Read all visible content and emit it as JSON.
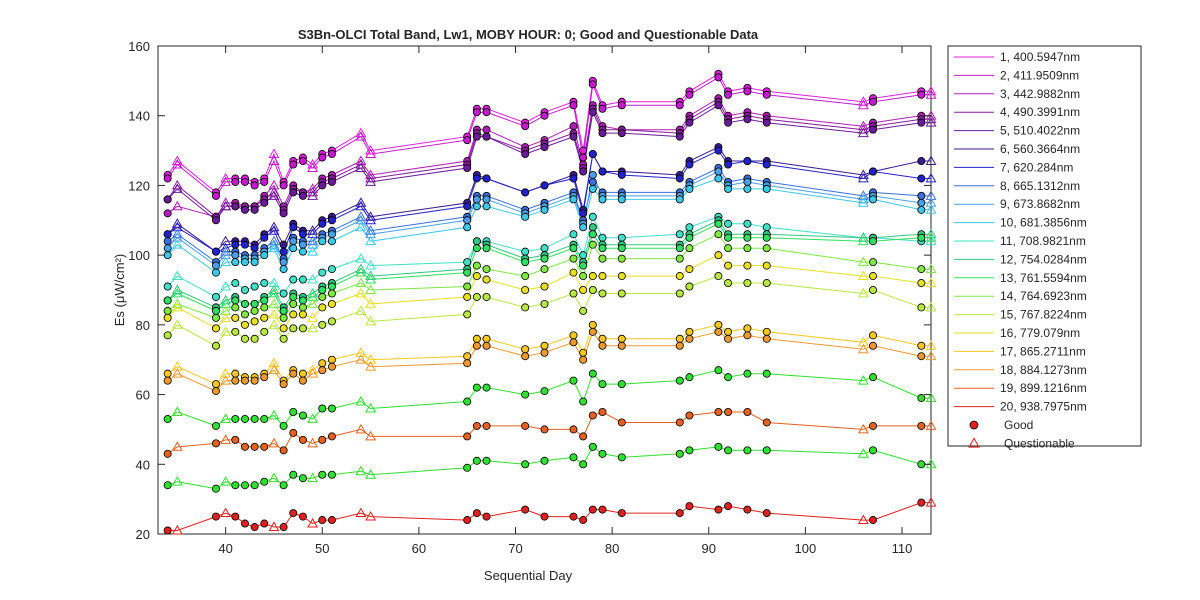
{
  "chart_data": {
    "type": "line",
    "title": "S3Bn-OLCI Total Band,  Lw1, MOBY HOUR: 0;  Good and Questionable Data",
    "xlabel": "Sequential Day",
    "ylabel": "Es (μW/cm²)",
    "xlim": [
      33,
      113
    ],
    "ylim": [
      20,
      160
    ],
    "xticks": [
      40,
      50,
      60,
      70,
      80,
      90,
      100,
      110
    ],
    "yticks": [
      20,
      40,
      60,
      80,
      100,
      120,
      140,
      160
    ],
    "grid": false,
    "legend_position": "outside-right",
    "x": [
      34,
      35,
      39,
      40,
      41,
      42,
      43,
      44,
      45,
      46,
      47,
      48,
      49,
      50,
      51,
      54,
      55,
      65,
      66,
      67,
      71,
      73,
      76,
      77,
      78,
      79,
      81,
      87,
      88,
      91,
      92,
      94,
      96,
      106,
      107,
      112,
      113
    ],
    "quality": [
      "G",
      "Q",
      "G",
      "Q",
      "G",
      "G",
      "G",
      "G",
      "Q",
      "G",
      "G",
      "G",
      "Q",
      "G",
      "G",
      "Q",
      "Q",
      "G",
      "G",
      "G",
      "G",
      "G",
      "G",
      "G",
      "G",
      "G",
      "G",
      "G",
      "G",
      "G",
      "G",
      "G",
      "G",
      "Q",
      "G",
      "G",
      "Q"
    ],
    "marker_legend": {
      "good": "Good",
      "questionable": "Questionable"
    },
    "series": [
      {
        "name": "1, 400.5947nm",
        "color": "#e020e0",
        "values": [
          123,
          127,
          118,
          122,
          122,
          122,
          121,
          122,
          129,
          121,
          127,
          128,
          126,
          129,
          130,
          135,
          130,
          134,
          142,
          142,
          138,
          141,
          144,
          130,
          150,
          143,
          144,
          144,
          147,
          152,
          147,
          148,
          147,
          144,
          145,
          147,
          147
        ]
      },
      {
        "name": "2, 411.9509nm",
        "color": "#c41ad0",
        "values": [
          122,
          126,
          117,
          121,
          121,
          121,
          120,
          121,
          127,
          120,
          126,
          127,
          125,
          128,
          129,
          134,
          129,
          133,
          141,
          141,
          137,
          140,
          143,
          128,
          149,
          142,
          143,
          143,
          146,
          151,
          146,
          147,
          146,
          143,
          144,
          146,
          146
        ]
      },
      {
        "name": "3, 442.9882nm",
        "color": "#b31cb8",
        "values": [
          112,
          114,
          111,
          115,
          115,
          114,
          114,
          117,
          120,
          114,
          120,
          118,
          119,
          122,
          123,
          127,
          123,
          127,
          136,
          136,
          131,
          133,
          137,
          126,
          143,
          137,
          136,
          136,
          140,
          145,
          140,
          141,
          140,
          137,
          138,
          140,
          140
        ]
      },
      {
        "name": "4, 490.3991nm",
        "color": "#8a1a9e",
        "values": [
          116,
          120,
          111,
          114,
          114,
          114,
          114,
          116,
          118,
          113,
          119,
          118,
          118,
          121,
          122,
          126,
          122,
          126,
          135,
          134,
          130,
          132,
          135,
          125,
          142,
          136,
          136,
          135,
          139,
          144,
          139,
          140,
          139,
          136,
          137,
          139,
          139
        ]
      },
      {
        "name": "5, 510.4022nm",
        "color": "#6a1a9a",
        "values": [
          116,
          119,
          110,
          114,
          114,
          113,
          113,
          115,
          117,
          112,
          118,
          117,
          117,
          120,
          121,
          125,
          121,
          125,
          134,
          134,
          129,
          131,
          134,
          124,
          141,
          135,
          135,
          134,
          138,
          143,
          138,
          139,
          138,
          135,
          136,
          138,
          138
        ]
      },
      {
        "name": "6, 560.3664nm",
        "color": "#3a1a90",
        "values": [
          106,
          109,
          101,
          104,
          104,
          104,
          103,
          106,
          108,
          103,
          109,
          107,
          107,
          110,
          111,
          115,
          111,
          115,
          123,
          122,
          118,
          120,
          123,
          113,
          129,
          124,
          124,
          123,
          127,
          131,
          127,
          127,
          127,
          123,
          124,
          127,
          127
        ]
      },
      {
        "name": "7,  620.284nm",
        "color": "#2222cc",
        "values": [
          106,
          108,
          101,
          102,
          103,
          103,
          102,
          105,
          107,
          101,
          108,
          106,
          106,
          109,
          110,
          114,
          110,
          114,
          122,
          122,
          118,
          120,
          122,
          112,
          129,
          124,
          123,
          122,
          126,
          130,
          126,
          127,
          126,
          122,
          124,
          122,
          122
        ]
      },
      {
        "name": "8, 665.1312nm",
        "color": "#3a70e0",
        "values": [
          104,
          106,
          98,
          101,
          101,
          100,
          100,
          102,
          104,
          99,
          105,
          104,
          104,
          106,
          107,
          111,
          107,
          111,
          117,
          117,
          113,
          115,
          118,
          110,
          121,
          118,
          118,
          118,
          121,
          125,
          121,
          122,
          121,
          117,
          118,
          117,
          117
        ]
      },
      {
        "name": "9, 673.8682nm",
        "color": "#4aa0e8",
        "values": [
          102,
          105,
          97,
          100,
          100,
          99,
          99,
          101,
          103,
          98,
          104,
          103,
          103,
          105,
          106,
          110,
          106,
          110,
          116,
          116,
          112,
          114,
          117,
          109,
          123,
          117,
          117,
          117,
          120,
          124,
          120,
          121,
          120,
          116,
          117,
          115,
          115
        ]
      },
      {
        "name": "10, 681.3856nm",
        "color": "#3cc8e8",
        "values": [
          100,
          103,
          95,
          98,
          98,
          98,
          98,
          100,
          102,
          96,
          102,
          101,
          101,
          104,
          104,
          108,
          104,
          108,
          114,
          114,
          111,
          113,
          116,
          108,
          119,
          116,
          116,
          116,
          119,
          122,
          119,
          119,
          119,
          115,
          116,
          113,
          113
        ]
      },
      {
        "name": "11, 708.9821nm",
        "color": "#40e0c8",
        "values": [
          91,
          94,
          88,
          91,
          92,
          90,
          91,
          92,
          92,
          89,
          93,
          93,
          93,
          95,
          96,
          99,
          97,
          98,
          104,
          104,
          101,
          102,
          106,
          100,
          111,
          105,
          105,
          106,
          108,
          111,
          109,
          109,
          108,
          105,
          105,
          104,
          104
        ]
      },
      {
        "name": "12, 754.0284nm",
        "color": "#30c880",
        "values": [
          87,
          90,
          85,
          87,
          88,
          86,
          86,
          88,
          90,
          85,
          89,
          88,
          89,
          91,
          92,
          96,
          94,
          96,
          104,
          103,
          99,
          100,
          103,
          98,
          108,
          103,
          103,
          103,
          106,
          110,
          106,
          106,
          106,
          105,
          105,
          106,
          106
        ]
      },
      {
        "name": "13, 761.5594nm",
        "color": "#30e060",
        "values": [
          87,
          89,
          84,
          86,
          87,
          86,
          86,
          87,
          89,
          84,
          88,
          87,
          88,
          90,
          91,
          95,
          93,
          95,
          102,
          102,
          98,
          99,
          102,
          97,
          106,
          102,
          102,
          102,
          105,
          109,
          105,
          105,
          105,
          104,
          104,
          105,
          105
        ]
      },
      {
        "name": "14, 764.6923nm",
        "color": "#80e840",
        "values": [
          84,
          86,
          82,
          84,
          85,
          83,
          84,
          85,
          86,
          82,
          86,
          85,
          86,
          88,
          89,
          92,
          90,
          91,
          97,
          96,
          94,
          96,
          99,
          94,
          103,
          99,
          99,
          99,
          102,
          106,
          102,
          102,
          102,
          98,
          98,
          96,
          96
        ]
      },
      {
        "name": "15, 767.8224nm",
        "color": "#b8e840",
        "values": [
          77,
          80,
          74,
          78,
          78,
          76,
          76,
          78,
          80,
          76,
          79,
          79,
          79,
          80,
          81,
          84,
          81,
          83,
          88,
          88,
          85,
          86,
          89,
          84,
          90,
          89,
          89,
          89,
          91,
          94,
          92,
          92,
          92,
          89,
          90,
          85,
          85
        ]
      },
      {
        "name": "16,  779.079nm",
        "color": "#e8e020",
        "values": [
          82,
          85,
          79,
          82,
          82,
          80,
          81,
          82,
          83,
          79,
          83,
          83,
          82,
          85,
          86,
          89,
          86,
          88,
          94,
          93,
          90,
          91,
          95,
          90,
          94,
          94,
          94,
          94,
          96,
          100,
          97,
          97,
          97,
          94,
          94,
          92,
          92
        ]
      },
      {
        "name": "17, 865.2711nm",
        "color": "#f8c820",
        "values": [
          66,
          68,
          63,
          66,
          66,
          65,
          65,
          66,
          69,
          64,
          67,
          66,
          67,
          69,
          70,
          72,
          70,
          71,
          76,
          76,
          73,
          74,
          77,
          72,
          80,
          76,
          76,
          76,
          78,
          80,
          78,
          79,
          78,
          75,
          77,
          74,
          74
        ]
      },
      {
        "name": "18, 884.1273nm",
        "color": "#f09830",
        "values": [
          64,
          66,
          61,
          64,
          64,
          64,
          64,
          65,
          67,
          63,
          66,
          64,
          66,
          67,
          68,
          70,
          68,
          69,
          74,
          74,
          71,
          72,
          75,
          70,
          78,
          74,
          74,
          74,
          76,
          78,
          76,
          77,
          76,
          73,
          74,
          71,
          71
        ]
      },
      {
        "name": "19, 899.1216nm",
        "color": "#e86020",
        "values": [
          43,
          45,
          46,
          47,
          47,
          45,
          45,
          45,
          46,
          44,
          49,
          47,
          46,
          47,
          48,
          50,
          48,
          48,
          51,
          51,
          51,
          50,
          50,
          48,
          54,
          55,
          52,
          52,
          54,
          55,
          55,
          55,
          52,
          50,
          51,
          51,
          51
        ]
      },
      {
        "name": "20, 938.7975nm",
        "color": "#e02020",
        "values": [
          21,
          21,
          25,
          26,
          25,
          23,
          22,
          23,
          22,
          22,
          26,
          25,
          23,
          24,
          24,
          26,
          25,
          24,
          26,
          25,
          27,
          25,
          25,
          24,
          27,
          27,
          26,
          26,
          28,
          27,
          28,
          27,
          26,
          24,
          24,
          29,
          29
        ]
      },
      {
        "name": "",
        "color": "#30e030",
        "values": [
          53,
          55,
          51,
          53,
          53,
          53,
          53,
          53,
          54,
          51,
          55,
          54,
          53,
          56,
          56,
          58,
          56,
          58,
          62,
          62,
          60,
          61,
          64,
          58,
          66,
          63,
          63,
          64,
          65,
          67,
          65,
          66,
          66,
          64,
          65,
          59,
          59
        ]
      },
      {
        "name": "",
        "color": "#30e030",
        "values": [
          34,
          35,
          33,
          35,
          34,
          34,
          34,
          35,
          36,
          34,
          37,
          36,
          36,
          37,
          37,
          38,
          37,
          39,
          41,
          41,
          40,
          41,
          42,
          40,
          45,
          43,
          42,
          43,
          44,
          45,
          44,
          44,
          44,
          43,
          44,
          40,
          40
        ]
      }
    ]
  }
}
